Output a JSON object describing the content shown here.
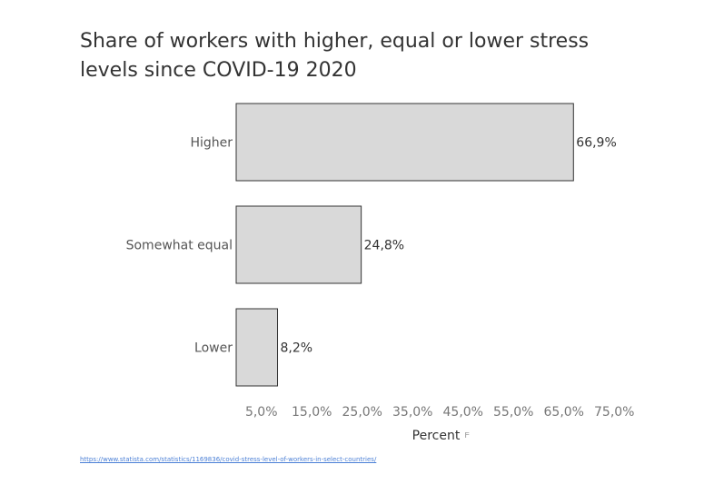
{
  "chart_data": {
    "type": "bar",
    "orientation": "horizontal",
    "title": "Share of workers with higher, equal or lower stress levels since COVID-19 2020",
    "categories": [
      "Higher",
      "Somewhat equal",
      "Lower"
    ],
    "values": [
      66.9,
      24.8,
      8.2
    ],
    "value_labels": [
      "66,9%",
      "24,8%",
      "8,2%"
    ],
    "xlabel": "Percent",
    "ylabel": "",
    "xlim": [
      0,
      77
    ],
    "x_ticks": [
      5,
      15,
      25,
      35,
      45,
      55,
      65,
      75
    ],
    "x_tick_labels": [
      "5,0%",
      "15,0%",
      "25,0%",
      "35,0%",
      "45,0%",
      "55,0%",
      "65,0%",
      "75,0%"
    ],
    "grid": false,
    "legend": "none",
    "bar_color": "#d9d9d9",
    "bar_edge_color": "#333333"
  },
  "source": {
    "url_text": "https://www.statista.com/statistics/1169836/covid-stress-level-of-workers-in-select-countries/"
  },
  "icons": {
    "axis_filter": "filter-icon"
  }
}
